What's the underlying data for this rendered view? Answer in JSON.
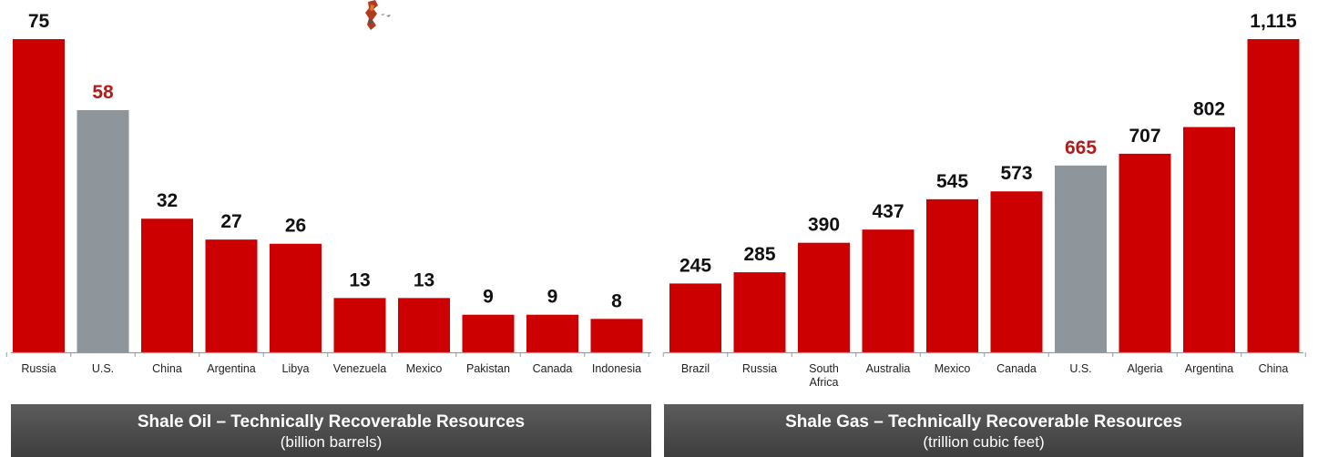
{
  "chart_data": [
    {
      "type": "bar",
      "title": "Shale Oil – Technically Recoverable Resources",
      "subtitle": "(billion barrels)",
      "categories": [
        [
          "Russia"
        ],
        [
          "U.S."
        ],
        [
          "China"
        ],
        [
          "Argentina"
        ],
        [
          "Libya"
        ],
        [
          "Venezuela"
        ],
        [
          "Mexico"
        ],
        [
          "Pakistan"
        ],
        [
          "Canada"
        ],
        [
          "Indonesia"
        ]
      ],
      "values": [
        75,
        58,
        32,
        27,
        26,
        13,
        13,
        9,
        9,
        8
      ],
      "value_labels": [
        "75",
        "58",
        "32",
        "27",
        "26",
        "13",
        "13",
        "9",
        "9",
        "8"
      ],
      "highlight_index": 1,
      "ylim": [
        0,
        75
      ]
    },
    {
      "type": "bar",
      "title": "Shale Gas – Technically Recoverable Resources",
      "subtitle": "(trillion cubic feet)",
      "categories": [
        [
          "Brazil"
        ],
        [
          "Russia"
        ],
        [
          "South",
          "Africa"
        ],
        [
          "Australia"
        ],
        [
          "Mexico"
        ],
        [
          "Canada"
        ],
        [
          "U.S."
        ],
        [
          "Algeria"
        ],
        [
          "Argentina"
        ],
        [
          "China"
        ]
      ],
      "values": [
        245,
        285,
        390,
        437,
        545,
        573,
        665,
        707,
        802,
        1115
      ],
      "value_labels": [
        "245",
        "285",
        "390",
        "437",
        "545",
        "573",
        "665",
        "707",
        "802",
        "1,115"
      ],
      "highlight_index": 6,
      "ylim": [
        0,
        1115
      ]
    }
  ],
  "colors": {
    "bar": "#cc0000",
    "highlight_bar": "#8e969c",
    "highlight_label": "#b01c1c",
    "label": "#111111",
    "axis": "#9a9a9a",
    "caption_bg": "#4d4d4d"
  },
  "icons": [
    "map-fragment-icon"
  ]
}
